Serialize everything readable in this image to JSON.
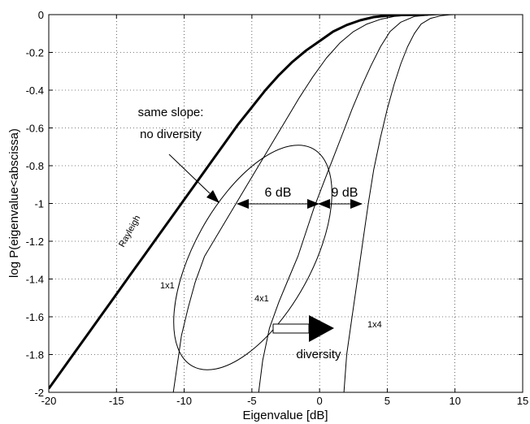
{
  "chart_data": {
    "type": "line",
    "title": "",
    "xlabel": "Eigenvalue [dB]",
    "ylabel": "log P(eigenvalue<abscissa)",
    "xlim": [
      -20,
      15
    ],
    "ylim": [
      -2,
      0
    ],
    "xticks": [
      -20,
      -15,
      -10,
      -5,
      0,
      5,
      10,
      15
    ],
    "yticks": [
      0,
      -0.2,
      -0.4,
      -0.6,
      -0.8,
      -1,
      -1.2,
      -1.4,
      -1.6,
      -1.8,
      -2
    ],
    "xtick_labels": [
      "-20",
      "-15",
      "-10",
      "-5",
      "0",
      "5",
      "10",
      "15"
    ],
    "ytick_labels": [
      "0",
      "-0.2",
      "-0.4",
      "-0.6",
      "-0.8",
      "-1",
      "-1.2",
      "-1.4",
      "-1.6",
      "-1.8",
      "-2"
    ],
    "grid": true,
    "series": [
      {
        "name": "Rayleigh",
        "bold": true,
        "x": [
          -20,
          -19,
          -18,
          -17,
          -16,
          -15,
          -14,
          -13,
          -12,
          -11,
          -10,
          -9,
          -8,
          -7,
          -6,
          -5,
          -4,
          -3,
          -2,
          -1,
          0,
          1,
          2,
          3,
          4,
          5,
          6,
          7,
          7.5,
          8
        ],
        "y": [
          -1.98,
          -1.88,
          -1.78,
          -1.68,
          -1.58,
          -1.48,
          -1.38,
          -1.28,
          -1.18,
          -1.08,
          -0.98,
          -0.88,
          -0.78,
          -0.68,
          -0.58,
          -0.49,
          -0.4,
          -0.32,
          -0.25,
          -0.19,
          -0.14,
          -0.09,
          -0.055,
          -0.03,
          -0.013,
          -0.005,
          -0.002,
          -0.001,
          0,
          0
        ]
      },
      {
        "name": "1x1",
        "bold": false,
        "x": [
          -10.8,
          -10.2,
          -9.7,
          -9.2,
          -8.5,
          -7.5,
          -6.5,
          -5.5,
          -4.5,
          -3.5,
          -2.5,
          -1.5,
          -0.5,
          0.5,
          1.5,
          2.5,
          3.5,
          4.5,
          5.5,
          6.5,
          7.5,
          8.5
        ],
        "y": [
          -2.0,
          -1.7,
          -1.55,
          -1.42,
          -1.28,
          -1.16,
          -1.04,
          -0.92,
          -0.8,
          -0.68,
          -0.56,
          -0.44,
          -0.33,
          -0.23,
          -0.15,
          -0.09,
          -0.05,
          -0.025,
          -0.01,
          -0.004,
          -0.001,
          0
        ]
      },
      {
        "name": "4x1",
        "bold": false,
        "x": [
          -4.5,
          -4.2,
          -3.7,
          -3.0,
          -2.3,
          -1.6,
          -1.0,
          -0.4,
          0.3,
          1.0,
          1.7,
          2.4,
          3.1,
          3.8,
          4.5,
          5.2,
          6.0,
          7.0,
          8.0,
          9.0
        ],
        "y": [
          -2.0,
          -1.83,
          -1.66,
          -1.52,
          -1.4,
          -1.28,
          -1.15,
          -1.02,
          -0.89,
          -0.76,
          -0.63,
          -0.5,
          -0.38,
          -0.27,
          -0.17,
          -0.09,
          -0.04,
          -0.01,
          -0.003,
          0
        ]
      },
      {
        "name": "1x4",
        "bold": false,
        "x": [
          1.8,
          2.0,
          2.4,
          2.8,
          3.2,
          3.6,
          4.0,
          4.5,
          5.0,
          5.5,
          6.0,
          6.5,
          7.0,
          7.5,
          8.2,
          9.0,
          9.6,
          10.0,
          10.3
        ],
        "y": [
          -2.0,
          -1.8,
          -1.6,
          -1.4,
          -1.2,
          -1.0,
          -0.82,
          -0.65,
          -0.5,
          -0.37,
          -0.26,
          -0.17,
          -0.1,
          -0.05,
          -0.02,
          -0.005,
          -0.001,
          0,
          0
        ]
      }
    ],
    "annotations": {
      "same_slope": [
        "same slope:",
        "no diversity"
      ],
      "six_db": "6 dB",
      "nine_db": "9 dB",
      "diversity": "diversity",
      "rayleigh": "Rayleigh",
      "one_by_one": "1x1",
      "four_by_one": "4x1",
      "one_by_four": "1x4"
    }
  }
}
